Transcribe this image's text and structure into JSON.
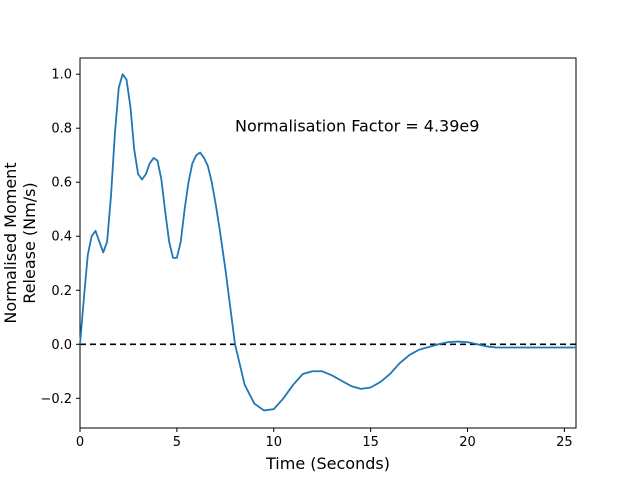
{
  "chart_data": {
    "type": "line",
    "title": "",
    "xlabel": "Time (Seconds)",
    "ylabel_lines": [
      "Normalised Moment",
      "Release (Nm/s)"
    ],
    "xlim": [
      0,
      25.6
    ],
    "ylim": [
      -0.31,
      1.06
    ],
    "xticks": [
      0,
      5,
      10,
      15,
      20,
      25
    ],
    "xtick_labels": [
      "0",
      "5",
      "10",
      "15",
      "20",
      "25"
    ],
    "yticks": [
      -0.2,
      0.0,
      0.2,
      0.4,
      0.6,
      0.8,
      1.0
    ],
    "ytick_labels": [
      "−0.2",
      "0.0",
      "0.2",
      "0.4",
      "0.6",
      "0.8",
      "1.0"
    ],
    "grid": false,
    "annotation": {
      "text": "Normalisation Factor = 4.39e9",
      "x": 8.0,
      "y": 0.81
    },
    "reference_line": {
      "y": 0.0,
      "style": "dashed",
      "color": "#000000"
    },
    "series": [
      {
        "color": "#1f77b4",
        "x": [
          0,
          0.2,
          0.4,
          0.6,
          0.8,
          1.0,
          1.2,
          1.4,
          1.6,
          1.8,
          2.0,
          2.2,
          2.4,
          2.6,
          2.8,
          3.0,
          3.2,
          3.4,
          3.6,
          3.8,
          4.0,
          4.2,
          4.4,
          4.6,
          4.8,
          5.0,
          5.2,
          5.4,
          5.6,
          5.8,
          6.0,
          6.2,
          6.4,
          6.6,
          6.8,
          7.0,
          7.2,
          7.5,
          8.0,
          8.5,
          9.0,
          9.5,
          10.0,
          10.5,
          11.0,
          11.5,
          12.0,
          12.5,
          13.0,
          13.5,
          14.0,
          14.5,
          15.0,
          15.5,
          16.0,
          16.5,
          17.0,
          17.5,
          18.0,
          18.5,
          19.0,
          19.5,
          20.0,
          20.5,
          21.0,
          21.5,
          22.0,
          22.5,
          23.0,
          23.5,
          24.0,
          24.5,
          25.0,
          25.6
        ],
        "y": [
          0,
          0.17,
          0.33,
          0.4,
          0.42,
          0.38,
          0.34,
          0.38,
          0.55,
          0.78,
          0.95,
          1.0,
          0.98,
          0.88,
          0.72,
          0.63,
          0.61,
          0.63,
          0.67,
          0.69,
          0.68,
          0.61,
          0.49,
          0.38,
          0.32,
          0.32,
          0.38,
          0.5,
          0.6,
          0.67,
          0.7,
          0.71,
          0.69,
          0.66,
          0.6,
          0.52,
          0.43,
          0.28,
          0.0,
          -0.15,
          -0.22,
          -0.245,
          -0.24,
          -0.2,
          -0.15,
          -0.11,
          -0.1,
          -0.1,
          -0.115,
          -0.135,
          -0.155,
          -0.165,
          -0.16,
          -0.14,
          -0.11,
          -0.07,
          -0.04,
          -0.02,
          -0.01,
          0.0,
          0.008,
          0.01,
          0.008,
          0.0,
          -0.008,
          -0.012,
          -0.012,
          -0.012,
          -0.012,
          -0.012,
          -0.012,
          -0.012,
          -0.012,
          -0.012
        ]
      }
    ]
  }
}
